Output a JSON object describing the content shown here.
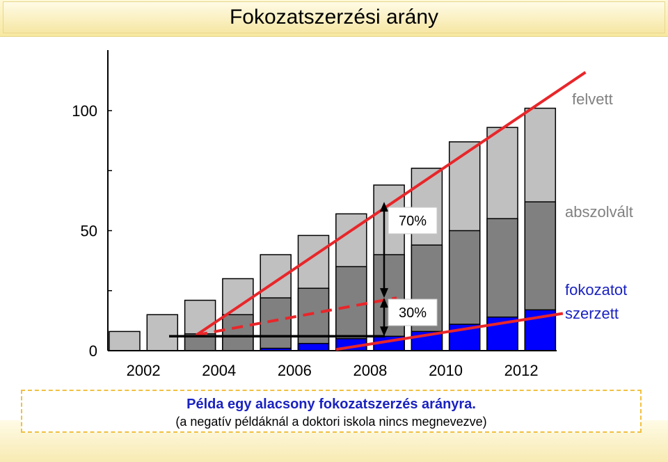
{
  "page_title": "Fokozatszerzési arány",
  "caption": {
    "main": "Példa egy alacsony fokozatszerzés arányra.",
    "note": "(a negatív példáknál a doktori iskola nincs megnevezve)"
  },
  "colors": {
    "felvett": "#c0c0c0",
    "abszolvalt": "#808080",
    "fokozatot_szerzett": "#0000ff",
    "trend": "#e8262a",
    "legend_felvett": "#808080",
    "legend_abszolvalt": "#808080",
    "legend_fokozatot": "#1a22c0"
  },
  "chart_data": {
    "type": "bar",
    "categories": [
      "2002",
      "2003",
      "2004",
      "2005",
      "2006",
      "2007",
      "2008",
      "2009",
      "2010",
      "2011",
      "2012",
      "2013"
    ],
    "x_tick_labels": [
      "2002",
      "2004",
      "2006",
      "2008",
      "2010",
      "2012"
    ],
    "y_tick_labels": [
      "0",
      "50",
      "100"
    ],
    "ylim": [
      0,
      110
    ],
    "series": [
      {
        "name": "felvett",
        "values": [
          8,
          15,
          21,
          30,
          40,
          48,
          57,
          69,
          76,
          87,
          93,
          101
        ]
      },
      {
        "name": "abszolvált",
        "values": [
          0,
          0,
          7,
          15,
          22,
          26,
          35,
          40,
          44,
          50,
          55,
          62
        ]
      },
      {
        "name": "fokozatot szerzett",
        "values": [
          0,
          0,
          0,
          0,
          1,
          3,
          5,
          6,
          8,
          11,
          14,
          17
        ]
      }
    ],
    "legend": [
      "felvett",
      "abszolvált",
      "fokozatot",
      "szerzett"
    ],
    "annotations": {
      "upper": "70%",
      "lower": "30%"
    }
  }
}
